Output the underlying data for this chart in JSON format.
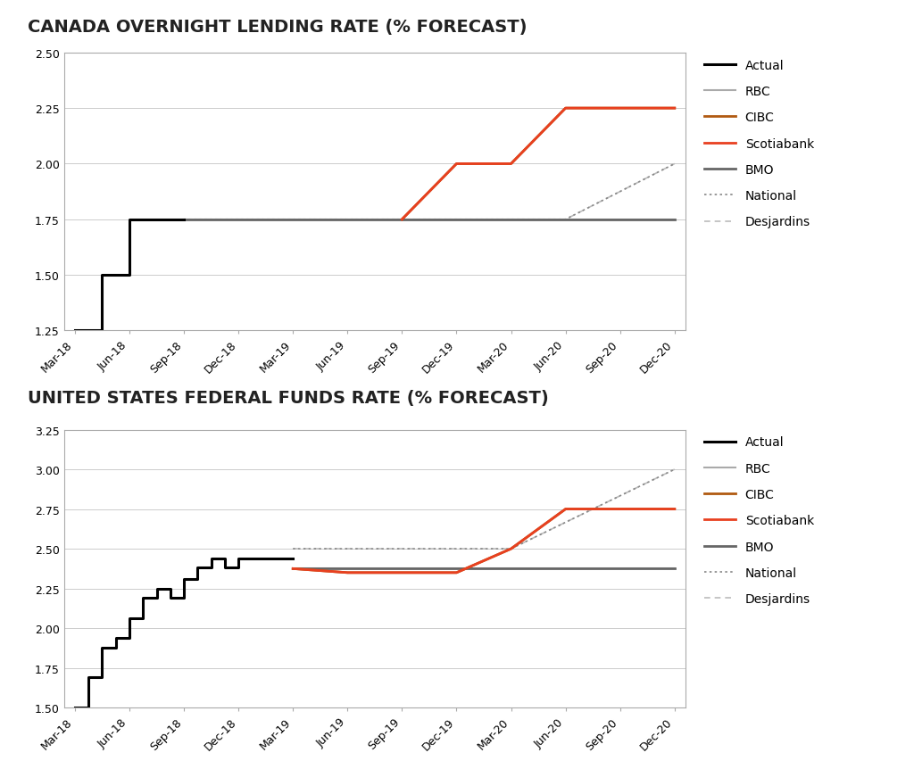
{
  "title1": "CANADA OVERNIGHT LENDING RATE (% FORECAST)",
  "title2": "UNITED STATES FEDERAL FUNDS RATE (% FORECAST)",
  "x_labels": [
    "Mar-18",
    "Jun-18",
    "Sep-18",
    "Dec-18",
    "Mar-19",
    "Jun-19",
    "Sep-19",
    "Dec-19",
    "Mar-20",
    "Jun-20",
    "Sep-20",
    "Dec-20"
  ],
  "x_positions": [
    0,
    1,
    2,
    3,
    4,
    5,
    6,
    7,
    8,
    9,
    10,
    11
  ],
  "canada": {
    "actual": {
      "x": [
        0,
        0.5,
        0.5,
        1.0,
        1.0,
        2.0
      ],
      "y": [
        1.25,
        1.25,
        1.5,
        1.5,
        1.75,
        1.75
      ]
    },
    "rbc": {
      "x": [
        2.0,
        11.0
      ],
      "y": [
        1.75,
        1.75
      ]
    },
    "cibc": {
      "x": [
        6.0,
        7.0,
        8.0,
        9.0,
        11.0
      ],
      "y": [
        1.75,
        2.0,
        2.0,
        2.25,
        2.25
      ]
    },
    "scotiabank": {
      "x": [
        6.0,
        7.0,
        8.0,
        9.0,
        11.0
      ],
      "y": [
        1.75,
        2.0,
        2.0,
        2.25,
        2.25
      ]
    },
    "bmo": {
      "x": [
        2.0,
        11.0
      ],
      "y": [
        1.75,
        1.75
      ]
    },
    "national": {
      "x": [
        2.0,
        9.0,
        11.0
      ],
      "y": [
        1.75,
        1.75,
        2.0
      ]
    },
    "desjardins": {
      "x": [
        2.0,
        9.0,
        11.0
      ],
      "y": [
        1.75,
        1.75,
        2.0
      ]
    },
    "ylim": [
      1.25,
      2.5
    ],
    "yticks": [
      1.25,
      1.5,
      1.75,
      2.0,
      2.25,
      2.5
    ]
  },
  "us": {
    "actual": {
      "x": [
        0,
        0.25,
        0.25,
        0.5,
        0.5,
        0.75,
        0.75,
        1.0,
        1.0,
        1.25,
        1.25,
        1.5,
        1.5,
        1.75,
        1.75,
        2.0,
        2.0,
        2.25,
        2.25,
        2.5,
        2.5,
        2.75,
        2.75,
        3.0,
        3.0,
        3.5,
        3.5,
        4.0
      ],
      "y": [
        1.5,
        1.5,
        1.69,
        1.69,
        1.88,
        1.88,
        1.94,
        1.94,
        2.06,
        2.06,
        2.19,
        2.19,
        2.25,
        2.25,
        2.19,
        2.19,
        2.31,
        2.31,
        2.38,
        2.38,
        2.44,
        2.44,
        2.38,
        2.38,
        2.44,
        2.44,
        2.44,
        2.44
      ]
    },
    "rbc": {
      "x": [
        4.0,
        11.0
      ],
      "y": [
        2.375,
        2.375
      ]
    },
    "cibc": {
      "x": [
        4.0,
        5.0,
        6.0,
        7.0,
        8.0,
        9.0,
        11.0
      ],
      "y": [
        2.375,
        2.35,
        2.35,
        2.35,
        2.5,
        2.75,
        2.75
      ]
    },
    "scotiabank": {
      "x": [
        4.0,
        5.0,
        6.0,
        7.0,
        8.0,
        9.0,
        11.0
      ],
      "y": [
        2.375,
        2.35,
        2.35,
        2.35,
        2.5,
        2.75,
        2.75
      ]
    },
    "bmo": {
      "x": [
        4.0,
        9.0,
        11.0
      ],
      "y": [
        2.375,
        2.375,
        2.375
      ]
    },
    "national": {
      "x": [
        4.0,
        7.0,
        8.0,
        11.0
      ],
      "y": [
        2.5,
        2.5,
        2.5,
        3.0
      ]
    },
    "desjardins": {
      "x": [
        4.0,
        7.0,
        8.0,
        11.0
      ],
      "y": [
        2.5,
        2.5,
        2.5,
        3.0
      ]
    },
    "ylim": [
      1.5,
      3.25
    ],
    "yticks": [
      1.5,
      1.75,
      2.0,
      2.25,
      2.5,
      2.75,
      3.0,
      3.25
    ]
  },
  "colors": {
    "actual": "#000000",
    "rbc": "#aaaaaa",
    "cibc": "#b05a10",
    "scotiabank": "#e84020",
    "bmo": "#666666",
    "national": "#888888",
    "desjardins": "#bbbbbb"
  },
  "legend_labels": [
    "Actual",
    "RBC",
    "CIBC",
    "Scotiabank",
    "BMO",
    "National",
    "Desjardins"
  ],
  "background_color": "#ffffff",
  "title_fontsize": 14,
  "axis_fontsize": 9,
  "border_color": "#aaaaaa"
}
